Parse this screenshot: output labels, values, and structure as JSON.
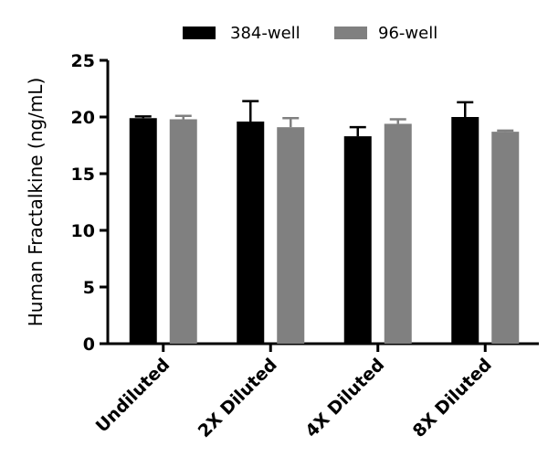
{
  "chart_data": {
    "type": "bar",
    "title": "",
    "xlabel": "",
    "ylabel": "Human Fractalkine (ng/mL)",
    "ylim": [
      0,
      25
    ],
    "yticks": [
      0,
      5,
      10,
      15,
      20,
      25
    ],
    "categories": [
      "Undiluted",
      "2X Diluted",
      "4X Diluted",
      "8X Diluted"
    ],
    "series": [
      {
        "name": "384-well",
        "color": "#000000",
        "values": [
          19.9,
          19.6,
          18.3,
          20.0
        ],
        "errors": [
          0.15,
          1.8,
          0.8,
          1.3
        ]
      },
      {
        "name": "96-well",
        "color": "#808080",
        "values": [
          19.8,
          19.1,
          19.4,
          18.7
        ],
        "errors": [
          0.3,
          0.8,
          0.4,
          0.1
        ]
      }
    ],
    "legend_position": "top"
  }
}
